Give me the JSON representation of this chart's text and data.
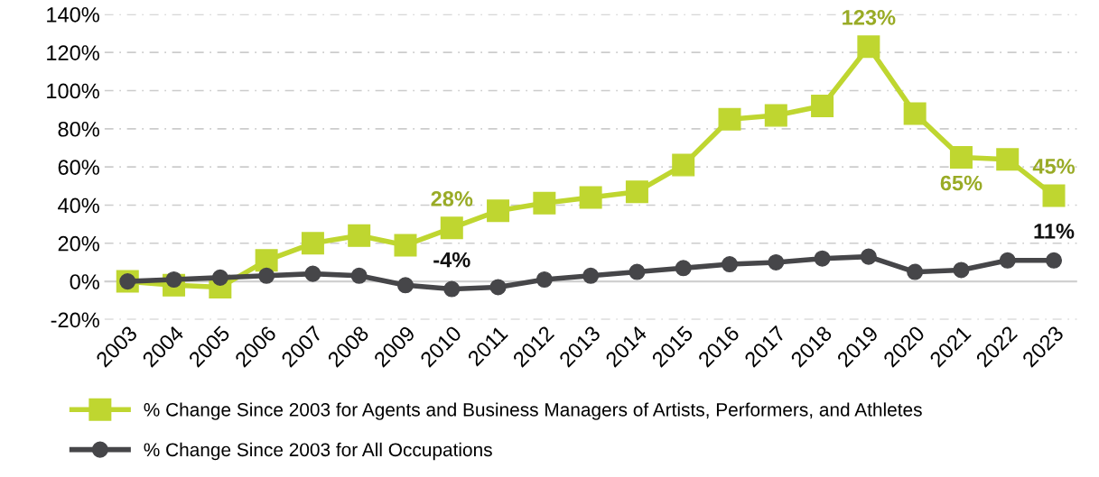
{
  "chart_data": {
    "type": "line",
    "categories": [
      "2003",
      "2004",
      "2005",
      "2006",
      "2007",
      "2008",
      "2009",
      "2010",
      "2011",
      "2012",
      "2013",
      "2014",
      "2015",
      "2016",
      "2017",
      "2018",
      "2019",
      "2020",
      "2021",
      "2022",
      "2023"
    ],
    "series": [
      {
        "name": "% Change Since 2003 for Agents and Business Managers of Artists, Performers, and Athletes",
        "color": "#bfd630",
        "marker": "square",
        "values": [
          0,
          -2,
          -3,
          11,
          20,
          24,
          19,
          28,
          37,
          41,
          44,
          47,
          61,
          85,
          87,
          92,
          123,
          88,
          65,
          64,
          45
        ],
        "value_labels": [
          null,
          null,
          null,
          null,
          null,
          null,
          null,
          "28%",
          null,
          null,
          null,
          null,
          null,
          null,
          null,
          null,
          "123%",
          null,
          "65%",
          null,
          "45%"
        ]
      },
      {
        "name": "% Change Since 2003 for All Occupations",
        "color": "#464649",
        "marker": "circle",
        "values": [
          0,
          1,
          2,
          3,
          4,
          3,
          -2,
          -4,
          -3,
          1,
          3,
          5,
          7,
          9,
          10,
          12,
          13,
          5,
          6,
          11,
          11
        ],
        "value_labels": [
          null,
          null,
          null,
          null,
          null,
          null,
          null,
          "-4%",
          null,
          null,
          null,
          null,
          null,
          null,
          null,
          null,
          null,
          null,
          null,
          null,
          "11%"
        ]
      }
    ],
    "ylim": [
      -20,
      140
    ],
    "yticks": [
      {
        "value": -20,
        "label": "-20%"
      },
      {
        "value": 0,
        "label": "0%"
      },
      {
        "value": 20,
        "label": "20%"
      },
      {
        "value": 40,
        "label": "40%"
      },
      {
        "value": 60,
        "label": "60%"
      },
      {
        "value": 80,
        "label": "80%"
      },
      {
        "value": 100,
        "label": "100%"
      },
      {
        "value": 120,
        "label": "120%"
      },
      {
        "value": 140,
        "label": "140%"
      }
    ],
    "grid": "y",
    "legend": "bottom",
    "line_style": "solid"
  }
}
